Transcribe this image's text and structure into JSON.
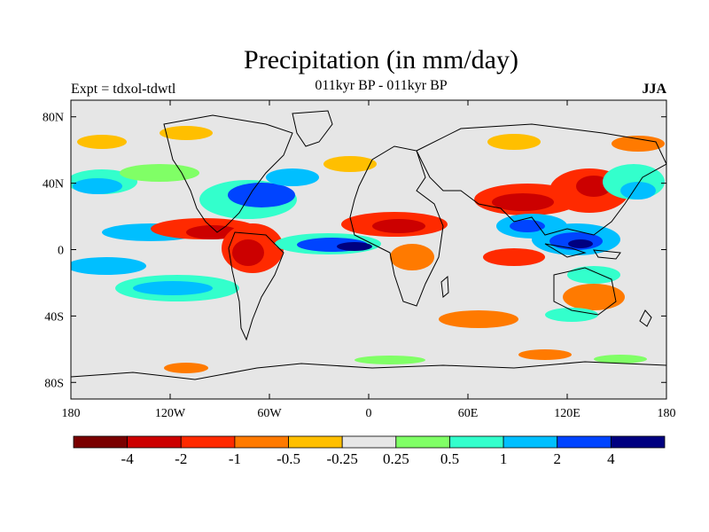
{
  "header": {
    "title": "Precipitation (in mm/day)",
    "left_label": "Expt = tdxol-tdwtl",
    "center_label": "011kyr BP - 011kyr BP",
    "right_label": "JJA"
  },
  "map": {
    "lat_range": [
      -90,
      90
    ],
    "lon_range": [
      -180,
      180
    ],
    "lat_ticks": [
      {
        "value": 80,
        "label": "80N"
      },
      {
        "value": 40,
        "label": "40N"
      },
      {
        "value": 0,
        "label": "0"
      },
      {
        "value": -40,
        "label": "40S"
      },
      {
        "value": -80,
        "label": "80S"
      }
    ],
    "lon_ticks": [
      {
        "value": -180,
        "label": "180"
      },
      {
        "value": -120,
        "label": "120W"
      },
      {
        "value": -60,
        "label": "60W"
      },
      {
        "value": 0,
        "label": "0"
      },
      {
        "value": 60,
        "label": "60E"
      },
      {
        "value": 120,
        "label": "120E"
      },
      {
        "value": 180,
        "label": "180"
      }
    ],
    "background_color": "#e6e6e6"
  },
  "colorbar": {
    "colors": [
      "#7a0000",
      "#cc0000",
      "#ff2a00",
      "#ff7a00",
      "#ffbf00",
      "#e6e6e6",
      "#80ff66",
      "#33ffcc",
      "#00bfff",
      "#0044ff",
      "#000080"
    ],
    "labels": [
      "-4",
      "-2",
      "-1",
      "-0.5",
      "-0.25",
      "0.25",
      "0.5",
      "1",
      "2",
      "4"
    ]
  }
}
